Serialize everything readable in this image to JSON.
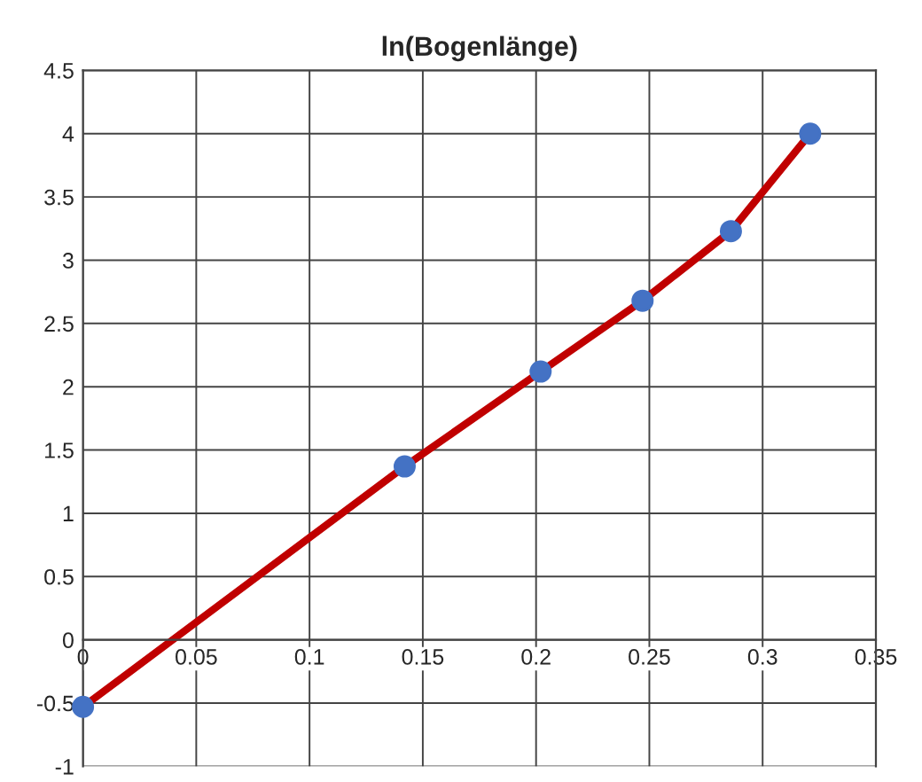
{
  "chart_data": {
    "type": "line",
    "title": "ln(Bogenlänge)",
    "x": [
      0,
      0.142,
      0.202,
      0.247,
      0.286,
      0.321
    ],
    "series": [
      {
        "color": "#c00000",
        "values": [
          -0.53,
          1.37,
          2.12,
          2.68,
          3.23,
          4.0
        ]
      },
      {
        "type": "scatter",
        "marker": "circle",
        "color": "#4472c4",
        "values": [
          -0.53,
          1.37,
          2.12,
          2.68,
          3.23,
          4.0
        ]
      }
    ],
    "xlim": [
      0,
      0.35
    ],
    "xticks": [
      0,
      0.05,
      0.1,
      0.15,
      0.2,
      0.25,
      0.3,
      0.35
    ],
    "ylim": [
      -1,
      4.5
    ],
    "yticks": [
      -1,
      -0.5,
      0,
      0.5,
      1,
      1.5,
      2,
      2.5,
      3,
      3.5,
      4,
      4.5
    ],
    "grid": true,
    "line_style": "solid",
    "legend": false
  }
}
